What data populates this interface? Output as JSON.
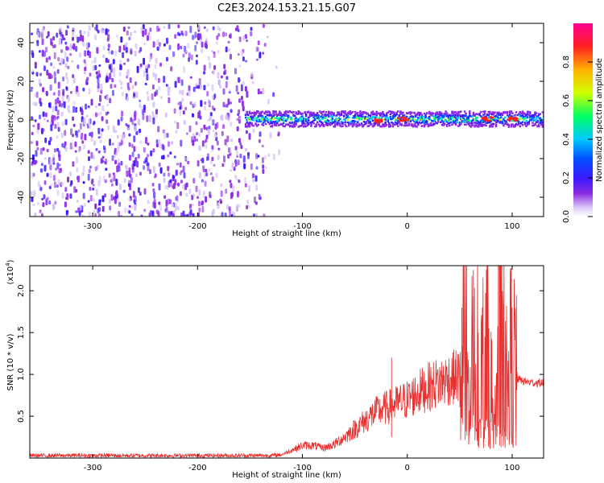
{
  "title": "C2E3.2024.153.21.15.G07",
  "colors": {
    "snr_line": "#e83030",
    "colormap": [
      "#ffffff",
      "#d9c4f5",
      "#8a2be2",
      "#3a1aff",
      "#0050ff",
      "#00c8ff",
      "#00ff60",
      "#d0ff00",
      "#ffb000",
      "#ff2020",
      "#ff0090"
    ]
  },
  "chart_data": [
    {
      "type": "heatmap",
      "xlabel": "Height of straight line (km)",
      "ylabel": "Frequency (Hz)",
      "xlim": [
        -360,
        130
      ],
      "ylim": [
        -50,
        50
      ],
      "x_ticks": [
        -300,
        -200,
        -100,
        0,
        100
      ],
      "y_ticks": [
        -40,
        -20,
        0,
        20,
        40
      ],
      "colorbar": {
        "label": "Normalized spectral amplitude",
        "range": [
          0,
          1
        ],
        "ticks": [
          "0.0",
          "0.2",
          "0.4",
          "0.6",
          "0.8"
        ]
      },
      "regions": [
        {
          "x_range": [
            -360,
            -130
          ],
          "y_range": [
            -50,
            50
          ],
          "amplitude": 0.05,
          "description": "broadband noise"
        },
        {
          "x_range": [
            -155,
            130
          ],
          "y_center": 0,
          "half_width": 4,
          "amplitude": 0.6,
          "description": "carrier line"
        }
      ],
      "carrier_peaks": [
        {
          "x": -30,
          "y": 0,
          "amplitude": 0.85
        },
        {
          "x": -5,
          "y": 1,
          "amplitude": 0.85
        },
        {
          "x": 75,
          "y": 1,
          "amplitude": 0.9
        },
        {
          "x": 100,
          "y": 1,
          "amplitude": 0.85
        }
      ]
    },
    {
      "type": "line",
      "xlabel": "Height of straight line (km)",
      "ylabel": "SNR (10 * v/v)",
      "y_multiplier": "(x10",
      "y_multiplier_exp": "4",
      "xlim": [
        -360,
        130
      ],
      "ylim": [
        0,
        23000
      ],
      "x_ticks": [
        -300,
        -200,
        -100,
        0,
        100
      ],
      "y_ticks": [
        "0.5",
        "1.0",
        "1.5",
        "2.0"
      ],
      "y_tick_values": [
        5000,
        10000,
        15000,
        20000
      ],
      "series": [
        {
          "x": [
            -360,
            -300,
            -200,
            -130,
            -120,
            -100,
            -90,
            -80,
            -70,
            -60,
            -50,
            -40,
            -30,
            -20,
            -10,
            0,
            10,
            20,
            30,
            40,
            50,
            55,
            60,
            65,
            70,
            75,
            80,
            85,
            90,
            95,
            100,
            105,
            110,
            120,
            130
          ],
          "y": [
            300,
            300,
            300,
            300,
            400,
            1500,
            1500,
            1200,
            1600,
            2500,
            3500,
            4500,
            5500,
            6000,
            6500,
            7000,
            7800,
            8500,
            9000,
            9500,
            9800,
            17000,
            8000,
            21000,
            9000,
            16000,
            8500,
            13000,
            18000,
            9000,
            14000,
            9500,
            9200,
            9000,
            9000
          ],
          "peaks": [
            {
              "x": -15,
              "y": 12000
            },
            {
              "x": 63,
              "y": 22500
            },
            {
              "x": 92,
              "y": 18500
            },
            {
              "x": 100,
              "y": 18000
            },
            {
              "x": 52,
              "y": 18000
            },
            {
              "x": 75,
              "y": 16000
            }
          ]
        }
      ]
    }
  ]
}
